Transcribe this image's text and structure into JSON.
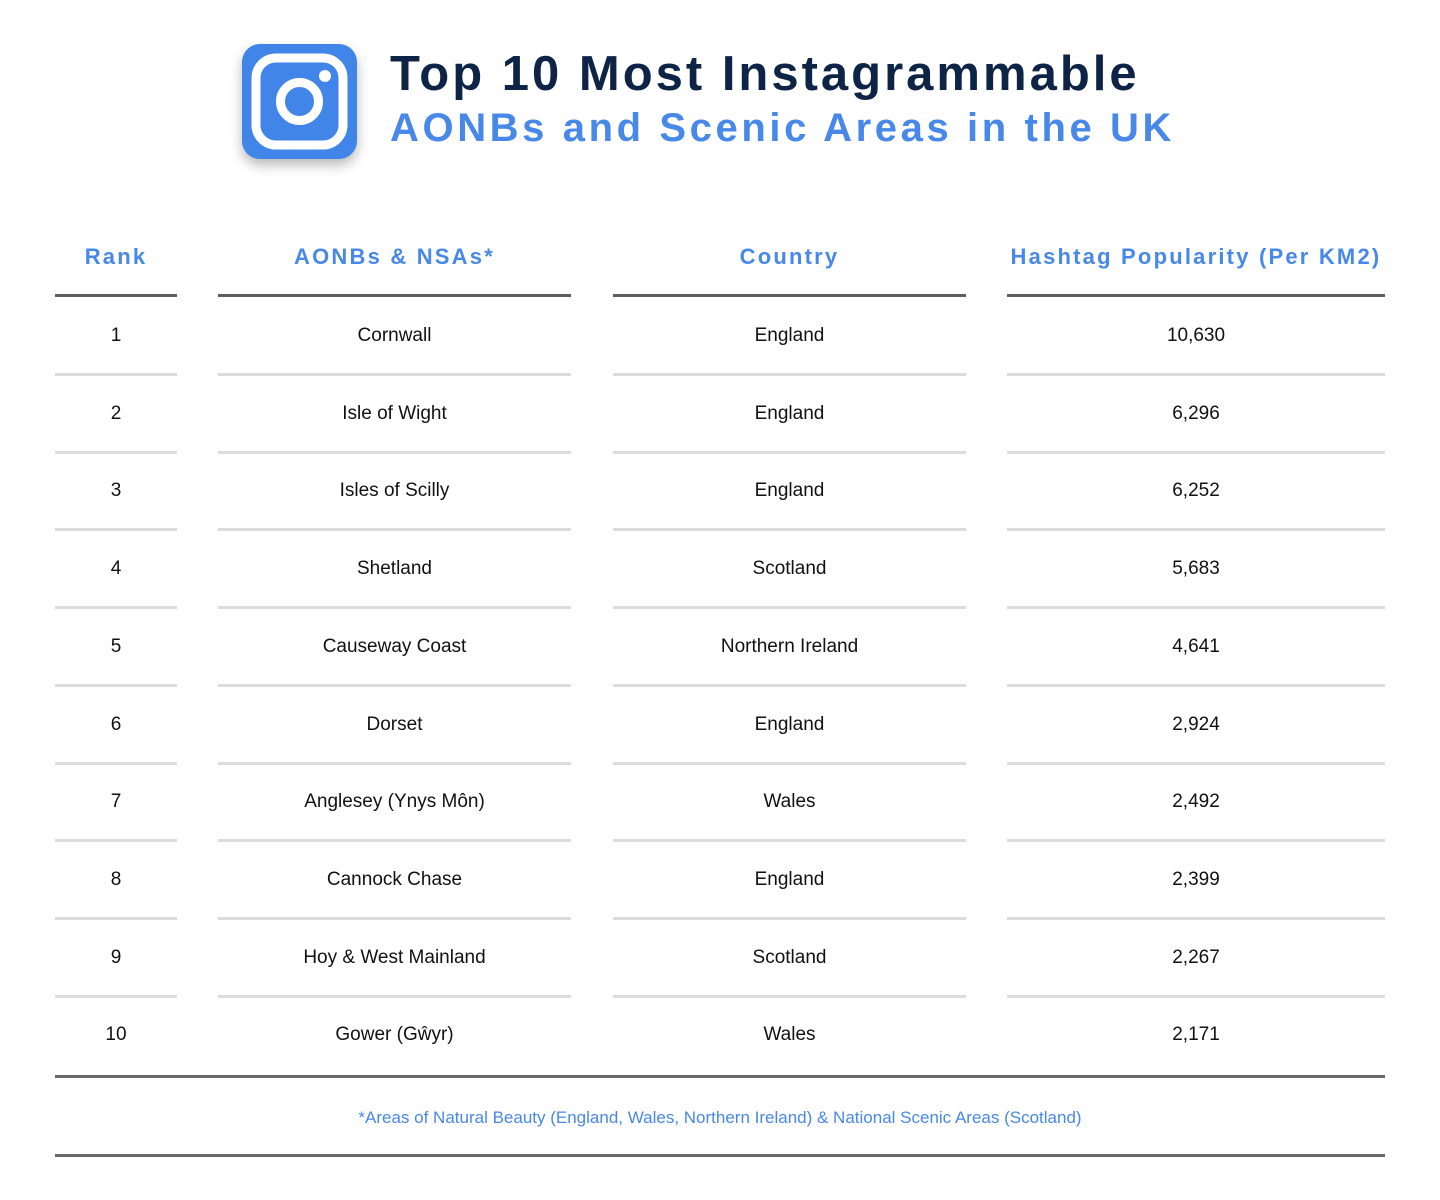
{
  "title": {
    "line1": "Top 10 Most Instagrammable",
    "line2": "AONBs and Scenic Areas in the UK"
  },
  "logo_icon": "instagram-icon",
  "colors": {
    "accent": "#4788e8",
    "title": "#0e2446",
    "logo": "#4285e9"
  },
  "chart_data": {
    "type": "table",
    "columns": [
      "Rank",
      "AONBs & NSAs*",
      "Country",
      "Hashtag Popularity (Per KM2)"
    ],
    "rows": [
      {
        "rank": "1",
        "area": "Cornwall",
        "country": "England",
        "popularity": "10,630"
      },
      {
        "rank": "2",
        "area": "Isle of Wight",
        "country": "England",
        "popularity": "6,296"
      },
      {
        "rank": "3",
        "area": "Isles of Scilly",
        "country": "England",
        "popularity": "6,252"
      },
      {
        "rank": "4",
        "area": "Shetland",
        "country": "Scotland",
        "popularity": "5,683"
      },
      {
        "rank": "5",
        "area": "Causeway Coast",
        "country": "Northern Ireland",
        "popularity": "4,641"
      },
      {
        "rank": "6",
        "area": "Dorset",
        "country": "England",
        "popularity": "2,924"
      },
      {
        "rank": "7",
        "area": "Anglesey (Ynys Môn)",
        "country": "Wales",
        "popularity": "2,492"
      },
      {
        "rank": "8",
        "area": "Cannock Chase",
        "country": "England",
        "popularity": "2,399"
      },
      {
        "rank": "9",
        "area": "Hoy & West Mainland",
        "country": "Scotland",
        "popularity": "2,267"
      },
      {
        "rank": "10",
        "area": "Gower (Gŵyr)",
        "country": "Wales",
        "popularity": "2,171"
      }
    ],
    "footnote": "*Areas of Natural Beauty (England, Wales, Northern Ireland) & National Scenic Areas (Scotland)"
  }
}
